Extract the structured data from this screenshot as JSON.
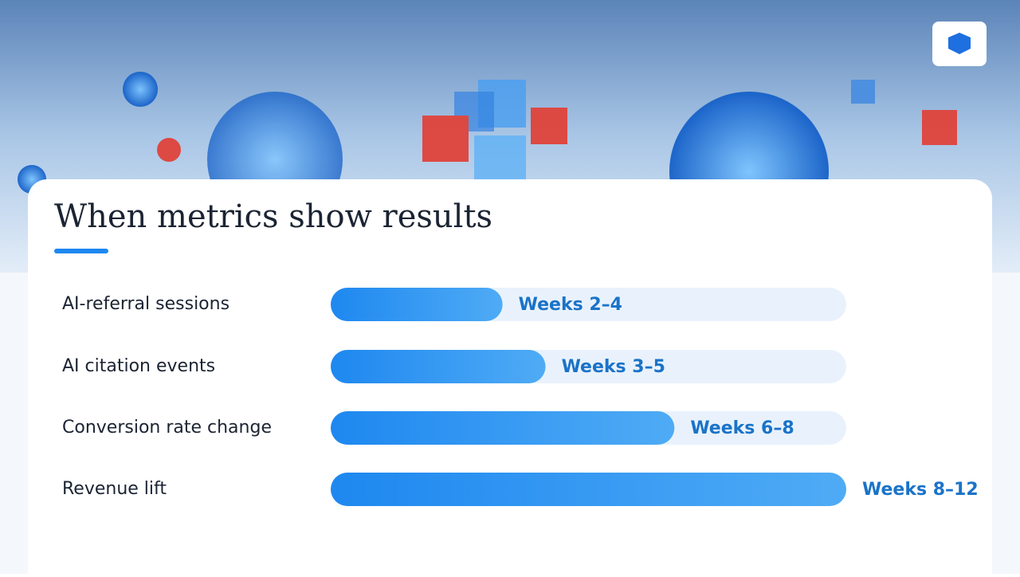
{
  "chart_data": {
    "type": "bar",
    "orientation": "horizontal",
    "title": "When metrics show results",
    "categories": [
      "AI-referral sessions",
      "AI citation events",
      "Conversion rate change",
      "Revenue lift"
    ],
    "values": [
      4,
      5,
      8,
      12
    ],
    "value_labels": [
      "Weeks 2–4",
      "Weeks 3–5",
      "Weeks 6–8",
      "Weeks 8–12"
    ],
    "xlim": [
      0,
      12
    ],
    "color": "#1e88f0"
  }
}
